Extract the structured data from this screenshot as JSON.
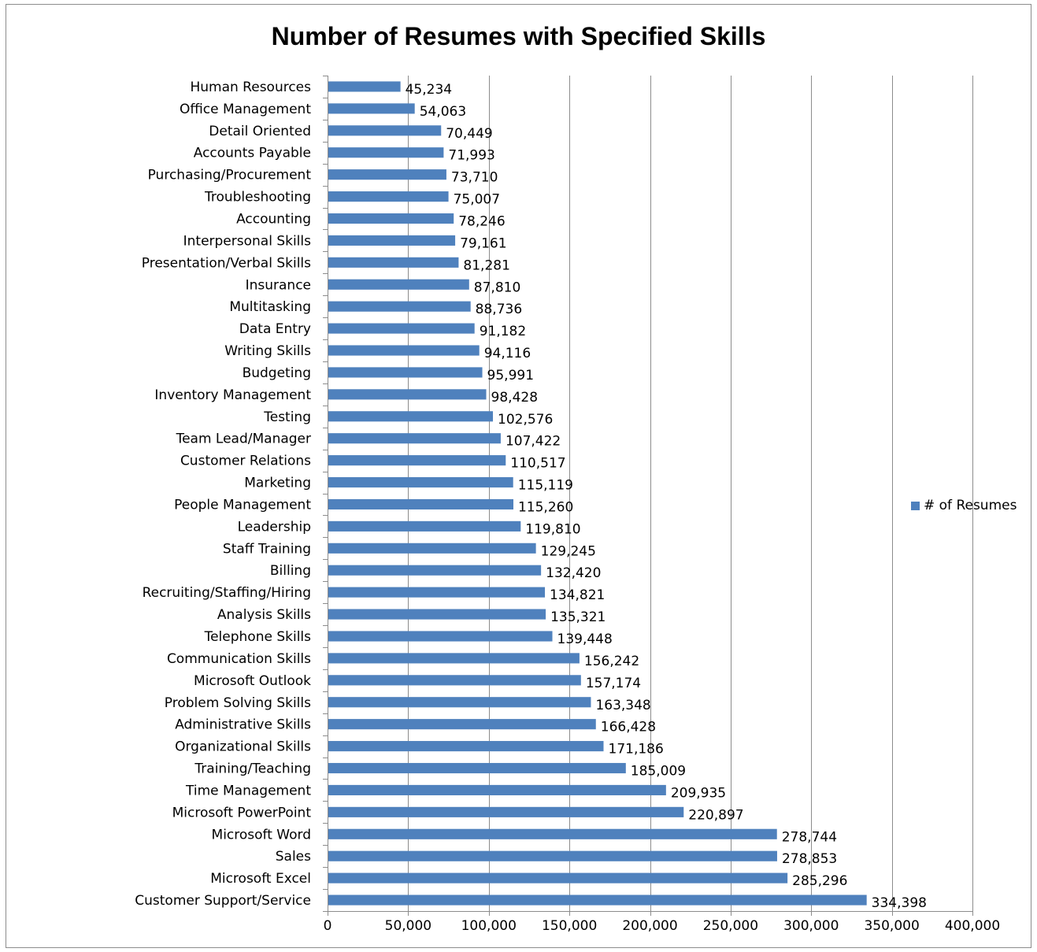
{
  "chart_data": {
    "type": "bar",
    "orientation": "horizontal",
    "title": "Number of Resumes with Specified Skills",
    "xlabel": "",
    "ylabel": "",
    "xlim": [
      0,
      400000
    ],
    "x_ticks": [
      0,
      50000,
      100000,
      150000,
      200000,
      250000,
      300000,
      350000,
      400000
    ],
    "x_tick_labels": [
      "0",
      "50,000",
      "100,000",
      "150,000",
      "200,000",
      "250,000",
      "300,000",
      "350,000",
      "400,000"
    ],
    "grid": "vertical major gridlines",
    "legend_position": "right",
    "bar_color": "#4f81bd",
    "categories": [
      "Human Resources",
      "Office Management",
      "Detail Oriented",
      "Accounts Payable",
      "Purchasing/Procurement",
      "Troubleshooting",
      "Accounting",
      "Interpersonal Skills",
      "Presentation/Verbal Skills",
      "Insurance",
      "Multitasking",
      "Data Entry",
      "Writing Skills",
      "Budgeting",
      "Inventory Management",
      "Testing",
      "Team Lead/Manager",
      "Customer Relations",
      "Marketing",
      "People Management",
      "Leadership",
      "Staff Training",
      "Billing",
      "Recruiting/Staffing/Hiring",
      "Analysis Skills",
      "Telephone Skills",
      "Communication Skills",
      "Microsoft Outlook",
      "Problem Solving Skills",
      "Administrative Skills",
      "Organizational Skills",
      "Training/Teaching",
      "Time Management",
      "Microsoft PowerPoint",
      "Microsoft Word",
      "Sales",
      "Microsoft Excel",
      "Customer Support/Service"
    ],
    "series": [
      {
        "name": "# of Resumes",
        "values": [
          45234,
          54063,
          70449,
          71993,
          73710,
          75007,
          78246,
          79161,
          81281,
          87810,
          88736,
          91182,
          94116,
          95991,
          98428,
          102576,
          107422,
          110517,
          115119,
          115260,
          119810,
          129245,
          132420,
          134821,
          135321,
          139448,
          156242,
          157174,
          163348,
          166428,
          171186,
          185009,
          209935,
          220897,
          278744,
          278853,
          285296,
          334398
        ],
        "data_labels": [
          "45,234",
          "54,063",
          "70,449",
          "71,993",
          "73,710",
          "75,007",
          "78,246",
          "79,161",
          "81,281",
          "87,810",
          "88,736",
          "91,182",
          "94,116",
          "95,991",
          "98,428",
          "102,576",
          "107,422",
          "110,517",
          "115,119",
          "115,260",
          "119,810",
          "129,245",
          "132,420",
          "134,821",
          "135,321",
          "139,448",
          "156,242",
          "157,174",
          "163,348",
          "166,428",
          "171,186",
          "185,009",
          "209,935",
          "220,897",
          "278,744",
          "278,853",
          "285,296",
          "334,398"
        ]
      }
    ]
  }
}
